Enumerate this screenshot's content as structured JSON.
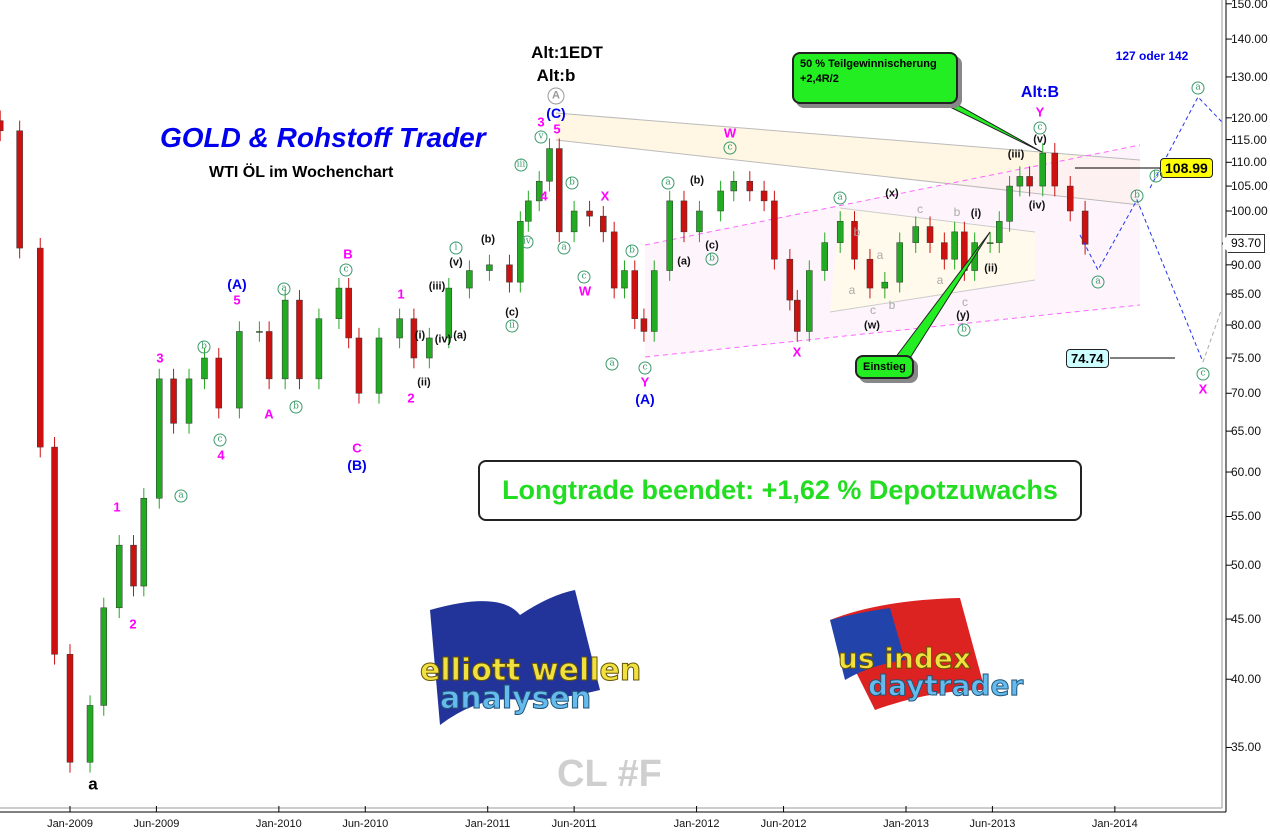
{
  "header": {
    "title": "GOLD & Rohstoff Trader",
    "subtitle": "WTI ÖL im Wochenchart",
    "alt_1edt": "Alt:1EDT",
    "alt_b_small": "Alt:b",
    "alt_B": "Alt:B",
    "target_text": "127 oder 142"
  },
  "banner": "Longtrade beendet: +1,62 % Depotzuwachs",
  "callouts": {
    "profit_line1": "50 % Teilgewinnischerung",
    "profit_line2": "+2,4R/2",
    "entry": "Einstieg"
  },
  "price_tags": {
    "upper": "108.99",
    "lower": "74.74",
    "current": "93.70"
  },
  "symbol": "CL #F",
  "logos": {
    "left": "elliott wellen analysen",
    "right": "us index daytrader"
  },
  "colors": {
    "bull": "#22aa22",
    "bear": "#cc1111",
    "wave_pink": "#ff00ff",
    "wave_blue": "#0000ee",
    "wave_green": "#3a9a6a",
    "projection": "#2233ee",
    "tag_yellow": "#ffff00",
    "tag_cyan": "#ccffff",
    "banner_text": "#22dd22"
  },
  "wave_labels": [
    {
      "text": "a",
      "style": "big"
    },
    {
      "text": "1",
      "style": "pink"
    },
    {
      "text": "2",
      "style": "pink"
    },
    {
      "text": "3",
      "style": "pink"
    },
    {
      "text": "4",
      "style": "pink"
    },
    {
      "text": "5",
      "style": "pink"
    },
    {
      "text": "(A)",
      "style": "blue"
    },
    {
      "text": "a",
      "style": "circ"
    },
    {
      "text": "b",
      "style": "circ"
    },
    {
      "text": "c",
      "style": "circ"
    },
    {
      "text": "a",
      "style": "circ"
    },
    {
      "text": "b",
      "style": "circ"
    },
    {
      "text": "c",
      "style": "circ"
    },
    {
      "text": "A",
      "style": "pink"
    },
    {
      "text": "B",
      "style": "pink"
    },
    {
      "text": "C",
      "style": "pink"
    },
    {
      "text": "(B)",
      "style": "blue"
    },
    {
      "text": "1",
      "style": "pink"
    },
    {
      "text": "2",
      "style": "pink"
    },
    {
      "text": "(i)",
      "style": "black"
    },
    {
      "text": "(ii)",
      "style": "black"
    },
    {
      "text": "(iii)",
      "style": "black"
    },
    {
      "text": "(iv)",
      "style": "black"
    },
    {
      "text": "(a)",
      "style": "black"
    },
    {
      "text": "(v)",
      "style": "black"
    },
    {
      "text": "i",
      "style": "circ"
    },
    {
      "text": "(b)",
      "style": "black"
    },
    {
      "text": "(c)",
      "style": "black"
    },
    {
      "text": "ii",
      "style": "circ"
    },
    {
      "text": "iii",
      "style": "circ"
    },
    {
      "text": "iv",
      "style": "circ"
    },
    {
      "text": "v",
      "style": "circ"
    },
    {
      "text": "3",
      "style": "pink"
    },
    {
      "text": "5",
      "style": "pink"
    },
    {
      "text": "4",
      "style": "pink"
    },
    {
      "text": "(C)",
      "style": "blue"
    },
    {
      "text": "A",
      "style": "circgray"
    },
    {
      "text": "b",
      "style": "circ"
    },
    {
      "text": "a",
      "style": "circ"
    },
    {
      "text": "c",
      "style": "circ"
    },
    {
      "text": "W",
      "style": "pink"
    },
    {
      "text": "X",
      "style": "pink"
    },
    {
      "text": "b",
      "style": "circ"
    },
    {
      "text": "a",
      "style": "circ"
    },
    {
      "text": "c",
      "style": "circ"
    },
    {
      "text": "Y",
      "style": "pink"
    },
    {
      "text": "(A)",
      "style": "blue"
    },
    {
      "text": "a",
      "style": "circ"
    },
    {
      "text": "(b)",
      "style": "black"
    },
    {
      "text": "(a)",
      "style": "black"
    },
    {
      "text": "(c)",
      "style": "black"
    },
    {
      "text": "b",
      "style": "circ"
    },
    {
      "text": "c",
      "style": "circ"
    },
    {
      "text": "W",
      "style": "pink"
    },
    {
      "text": "X",
      "style": "pink"
    },
    {
      "text": "a",
      "style": "circ"
    },
    {
      "text": "b",
      "style": "gray"
    },
    {
      "text": "a",
      "style": "gray"
    },
    {
      "text": "a",
      "style": "gray"
    },
    {
      "text": "c",
      "style": "gray"
    },
    {
      "text": "b",
      "style": "gray"
    },
    {
      "text": "(w)",
      "style": "black"
    },
    {
      "text": "(x)",
      "style": "black"
    },
    {
      "text": "c",
      "style": "gray"
    },
    {
      "text": "b",
      "style": "gray"
    },
    {
      "text": "a",
      "style": "gray"
    },
    {
      "text": "c",
      "style": "gray"
    },
    {
      "text": "(y)",
      "style": "black"
    },
    {
      "text": "b",
      "style": "circ"
    },
    {
      "text": "(i)",
      "style": "black"
    },
    {
      "text": "(ii)",
      "style": "black"
    },
    {
      "text": "(iii)",
      "style": "black"
    },
    {
      "text": "(iv)",
      "style": "black"
    },
    {
      "text": "(v)",
      "style": "black"
    },
    {
      "text": "c",
      "style": "circ"
    },
    {
      "text": "Y",
      "style": "pink"
    },
    {
      "text": "a",
      "style": "circ"
    },
    {
      "text": "a",
      "style": "circ"
    },
    {
      "text": "b",
      "style": "circ"
    },
    {
      "text": "b",
      "style": "circ"
    },
    {
      "text": "c",
      "style": "circ"
    },
    {
      "text": "X",
      "style": "pink"
    }
  ],
  "chart_data": {
    "type": "candlestick",
    "title": "WTI ÖL im Wochenchart",
    "y_scale": "log",
    "ylim": [
      31,
      152
    ],
    "y_ticks": [
      150,
      140,
      130,
      120,
      115,
      110,
      105,
      100,
      95,
      90,
      85,
      80,
      75,
      70,
      65,
      60,
      55,
      50,
      45,
      40,
      35
    ],
    "y_tick_labels": [
      "150.00",
      "140.00",
      "130.00",
      "120.00",
      "115.00",
      "110.00",
      "105.00",
      "100.00",
      "95.00",
      "90.00",
      "85.00",
      "80.00",
      "75.00",
      "70.00",
      "65.00",
      "60.00",
      "55.00",
      "50.00",
      "45.00",
      "40.00",
      "35.00"
    ],
    "x_tick_labels": [
      "Jan-2009",
      "Jun-2009",
      "Jan-2010",
      "Jun-2010",
      "Jan-2011",
      "Jun-2011",
      "Jan-2012",
      "Jun-2012",
      "Jan-2013",
      "Jun-2013",
      "Jan-2014"
    ],
    "x_ticks": [
      "2009-01-01",
      "2009-06-01",
      "2010-01-01",
      "2010-06-01",
      "2011-01-01",
      "2011-06-01",
      "2012-01-01",
      "2012-06-01",
      "2013-01-01",
      "2013-06-01",
      "2014-01-01"
    ],
    "dates": [
      "2008-09-01",
      "2008-10-05",
      "2008-11-10",
      "2008-12-05",
      "2009-01-01",
      "2009-02-05",
      "2009-03-01",
      "2009-03-28",
      "2009-04-22",
      "2009-05-10",
      "2009-06-06",
      "2009-07-01",
      "2009-07-28",
      "2009-08-24",
      "2009-09-18",
      "2009-10-24",
      "2009-11-28",
      "2009-12-15",
      "2010-01-12",
      "2010-02-06",
      "2010-03-12",
      "2010-04-16",
      "2010-05-03",
      "2010-05-21",
      "2010-06-25",
      "2010-07-31",
      "2010-08-25",
      "2010-09-21",
      "2010-10-25",
      "2010-11-30",
      "2011-01-04",
      "2011-02-08",
      "2011-02-27",
      "2011-03-13",
      "2011-04-01",
      "2011-04-19",
      "2011-05-06",
      "2011-06-01",
      "2011-06-28",
      "2011-07-22",
      "2011-08-10",
      "2011-08-28",
      "2011-09-15",
      "2011-10-01",
      "2011-10-19",
      "2011-11-15",
      "2011-12-10",
      "2012-01-06",
      "2012-02-12",
      "2012-03-06",
      "2012-04-03",
      "2012-04-28",
      "2012-05-16",
      "2012-06-12",
      "2012-06-25",
      "2012-07-16",
      "2012-08-12",
      "2012-09-08",
      "2012-10-03",
      "2012-10-30",
      "2012-11-25",
      "2012-12-21",
      "2013-01-18",
      "2013-02-12",
      "2013-03-09",
      "2013-03-27",
      "2013-04-13",
      "2013-05-01",
      "2013-05-28",
      "2013-06-13",
      "2013-07-01",
      "2013-07-19",
      "2013-08-05",
      "2013-08-28",
      "2013-09-18",
      "2013-10-15",
      "2013-11-10"
    ],
    "close": [
      117,
      93,
      63,
      42,
      34,
      38,
      46,
      52,
      48,
      57,
      72,
      66,
      72,
      75,
      68,
      79,
      79,
      72,
      84,
      72,
      81,
      86,
      78,
      70,
      78,
      81,
      75,
      78,
      86,
      89,
      90,
      87,
      98,
      102,
      106,
      113,
      96,
      100,
      99,
      96,
      86,
      89,
      81,
      79,
      89,
      102,
      96,
      100,
      104,
      106,
      104,
      102,
      91,
      84,
      79,
      89,
      94,
      98,
      91,
      86,
      87,
      94,
      97,
      94,
      91,
      96,
      89,
      94,
      94,
      98,
      105,
      107,
      105,
      112,
      105,
      100,
      93.7
    ],
    "levels": {
      "target_high": 108.99,
      "target_low": 74.74,
      "last": 93.7
    }
  }
}
